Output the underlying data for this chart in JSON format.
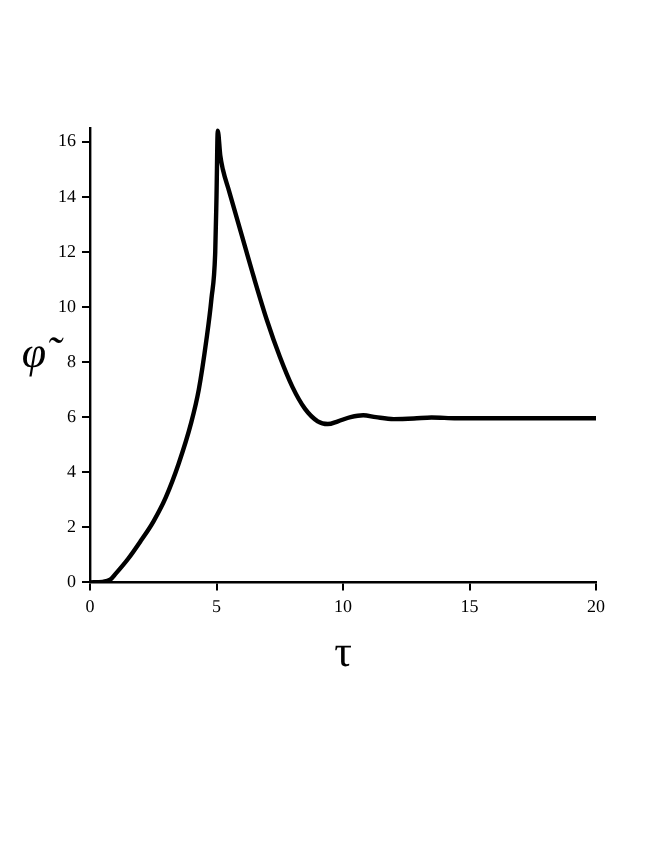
{
  "chart_data": {
    "type": "line",
    "xlabel": "τ",
    "ylabel": "φ̃",
    "xlim": [
      0,
      20
    ],
    "xticks": [
      0,
      5,
      10,
      15,
      20
    ],
    "ylim": [
      0,
      16.5
    ],
    "yticks": [
      0,
      2,
      4,
      6,
      8,
      10,
      12,
      14,
      16
    ],
    "grid": false,
    "legend": false,
    "marker": "none",
    "line_style": "solid",
    "series": [
      {
        "color": "#000000",
        "x": [
          0,
          0.5,
          0.8,
          1,
          1.5,
          2,
          2.5,
          3,
          3.5,
          4,
          4.3,
          4.6,
          4.8,
          4.95,
          5.0,
          5.05,
          5.15,
          5.25,
          5.5,
          6,
          6.5,
          7,
          7.5,
          8,
          8.5,
          9,
          9.4,
          9.8,
          10.3,
          10.8,
          11.3,
          12,
          12.8,
          13.5,
          14.5,
          16,
          20
        ],
        "values": [
          0,
          0.02,
          0.1,
          0.3,
          0.85,
          1.5,
          2.2,
          3.1,
          4.3,
          5.8,
          7,
          8.8,
          10.3,
          12,
          14,
          16.4,
          15.5,
          15,
          14.2,
          12.6,
          11,
          9.5,
          8.2,
          7.1,
          6.3,
          5.85,
          5.75,
          5.85,
          6,
          6.07,
          6,
          5.93,
          5.95,
          5.99,
          5.96,
          5.96,
          5.96
        ]
      }
    ]
  }
}
